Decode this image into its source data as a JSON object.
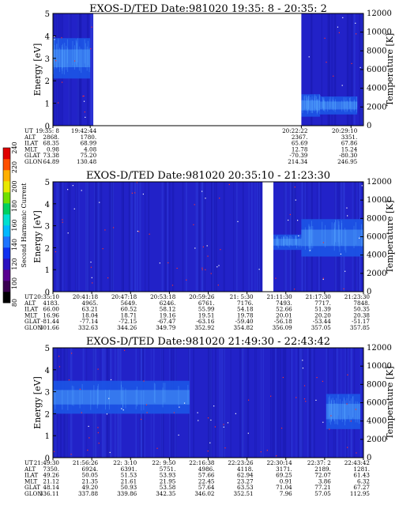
{
  "colors": {
    "background": "#2222c8",
    "band_core": "#3a7ff0",
    "band_edge": "#1c55e6",
    "dot": "#ff3030",
    "gap": "#ffffff",
    "colorbar": [
      "#000000",
      "#3a0050",
      "#5a0090",
      "#2a10c0",
      "#1030f0",
      "#1e74ff",
      "#00b8ff",
      "#00e0d0",
      "#00d060",
      "#70e000",
      "#e8e800",
      "#ffb000",
      "#ff5000",
      "#e00000"
    ]
  },
  "colorbar": {
    "label": "Second Harmonic Current",
    "ticks": [
      "80",
      "100",
      "120",
      "140",
      "160",
      "180",
      "200",
      "220",
      "240"
    ]
  },
  "chart_data": [
    {
      "type": "heatmap",
      "title": "EXOS-D/TED   Date:981020  19:35: 8 - 20:35: 2",
      "ylabel": "Energy [eV]",
      "y2label": "Temperature [K]",
      "ylim": [
        0,
        5
      ],
      "y2lim": [
        0,
        12000
      ],
      "yticks": [
        "0",
        "1",
        "2",
        "3",
        "4",
        "5"
      ],
      "y2ticks": [
        "0",
        "2000",
        "4000",
        "6000",
        "8000",
        "10000",
        "12000"
      ],
      "gaps": [
        [
          0.13,
          0.8
        ]
      ],
      "bands": [
        {
          "x0": 0.0,
          "x1": 0.12,
          "e0": 2.1,
          "e1": 3.9
        },
        {
          "x0": 0.8,
          "x1": 0.86,
          "e0": 0.4,
          "e1": 1.4
        },
        {
          "x0": 0.86,
          "x1": 0.98,
          "e0": 0.5,
          "e1": 1.3
        }
      ],
      "orbit": {
        "labels": [
          "UT",
          "ALT",
          "ILAT",
          "MLT",
          "GLAT",
          "GLON"
        ],
        "columns": [
          {
            "pos": 0.0,
            "vals": [
              "19:35: 8",
              "2868.",
              "68.35",
              "0.98",
              "73.38",
              "64.89"
            ]
          },
          {
            "pos": 0.12,
            "vals": [
              "19:42:44",
              "1780.",
              "68.99",
              "4.08",
              "75.20",
              "130.48"
            ]
          },
          {
            "pos": 0.8,
            "vals": [
              "20:22:22",
              "2367.",
              "65.69",
              "12.78",
              "-70.39",
              "214.34"
            ]
          },
          {
            "pos": 0.96,
            "vals": [
              "20:29:10",
              "3351.",
              "67.86",
              "15.24",
              "-80.30",
              "246.95"
            ]
          }
        ]
      }
    },
    {
      "type": "heatmap",
      "title": "EXOS-D/TED   Date:981020  20:35:10 - 21:23:30",
      "ylabel": "Energy [eV]",
      "y2label": "Temperature [K]",
      "ylim": [
        0,
        5
      ],
      "y2lim": [
        0,
        12000
      ],
      "yticks": [
        "0",
        "1",
        "2",
        "3",
        "4",
        "5"
      ],
      "y2ticks": [
        "0",
        "2000",
        "4000",
        "6000",
        "8000",
        "10000",
        "12000"
      ],
      "gaps": [
        [
          0.675,
          0.71
        ]
      ],
      "bands": [
        {
          "x0": 0.71,
          "x1": 0.8,
          "e0": 1.9,
          "e1": 2.6
        },
        {
          "x0": 0.8,
          "x1": 1.0,
          "e0": 1.6,
          "e1": 3.3
        }
      ],
      "orbit": {
        "labels": [
          "UT",
          "ALT",
          "ILAT",
          "MLT",
          "GLAT",
          "GLON"
        ],
        "columns": [
          {
            "pos": 0.0,
            "vals": [
              "20:35:10",
              "4183.",
              "66.00",
              "16.96",
              "-81.44",
              "301.66"
            ]
          },
          {
            "pos": 0.125,
            "vals": [
              "20:41:18",
              "4965.",
              "63.21",
              "18.04",
              "-77.14",
              "332.63"
            ]
          },
          {
            "pos": 0.25,
            "vals": [
              "20:47:18",
              "5649.",
              "60.52",
              "18.71",
              "-72.15",
              "344.26"
            ]
          },
          {
            "pos": 0.375,
            "vals": [
              "20:53:18",
              "6246.",
              "58.12",
              "19.16",
              "-67.47",
              "349.79"
            ]
          },
          {
            "pos": 0.5,
            "vals": [
              "20:59:26",
              "6761.",
              "55.99",
              "19.51",
              "-63.16",
              "352.92"
            ]
          },
          {
            "pos": 0.625,
            "vals": [
              "21: 5:30",
              "7176.",
              "54.18",
              "19.78",
              "-59.40",
              "354.82"
            ]
          },
          {
            "pos": 0.75,
            "vals": [
              "21:11:30",
              "7493.",
              "52.66",
              "20.01",
              "-56.18",
              "356.09"
            ]
          },
          {
            "pos": 0.875,
            "vals": [
              "21:17:30",
              "7717.",
              "51.39",
              "20.20",
              "-53.44",
              "357.05"
            ]
          },
          {
            "pos": 1.0,
            "vals": [
              "21:23:30",
              "7848.",
              "50.35",
              "20.38",
              "-51.17",
              "357.85"
            ]
          }
        ]
      }
    },
    {
      "type": "heatmap",
      "title": "EXOS-D/TED   Date:981020  21:49:30 - 22:43:42",
      "ylabel": "Energy [eV]",
      "y2label": "Temperature [K]",
      "ylim": [
        0,
        5
      ],
      "y2lim": [
        0,
        12000
      ],
      "yticks": [
        "0",
        "1",
        "2",
        "3",
        "4",
        "5"
      ],
      "y2ticks": [
        "0",
        "2000",
        "4000",
        "6000",
        "8000",
        "10000",
        "12000"
      ],
      "gaps": [],
      "bands": [
        {
          "x0": 0.0,
          "x1": 0.44,
          "e0": 2.0,
          "e1": 3.5
        },
        {
          "x0": 0.88,
          "x1": 0.99,
          "e0": 1.3,
          "e1": 2.9
        }
      ],
      "orbit": {
        "labels": [
          "UT",
          "ALT",
          "ILAT",
          "MLT",
          "GLAT",
          "GLON"
        ],
        "columns": [
          {
            "pos": 0.0,
            "vals": [
              "21:49:30",
              "7350.",
              "49.26",
              "21.12",
              "48.14",
              "336.11"
            ]
          },
          {
            "pos": 0.125,
            "vals": [
              "21:56:26",
              "6924.",
              "50.05",
              "21.35",
              "49.20",
              "337.88"
            ]
          },
          {
            "pos": 0.25,
            "vals": [
              "22: 3:10",
              "6391.",
              "51.53",
              "21.61",
              "50.93",
              "339.86"
            ]
          },
          {
            "pos": 0.375,
            "vals": [
              "22: 9:50",
              "5751.",
              "53.93",
              "21.95",
              "53.58",
              "342.35"
            ]
          },
          {
            "pos": 0.5,
            "vals": [
              "22:16:38",
              "4986.",
              "57.66",
              "22.45",
              "57.64",
              "346.02"
            ]
          },
          {
            "pos": 0.625,
            "vals": [
              "22:23:26",
              "4118.",
              "62.94",
              "23.27",
              "63.53",
              "352.51"
            ]
          },
          {
            "pos": 0.75,
            "vals": [
              "22:30:14",
              "3171.",
              "69.25",
              "0.91",
              "71.04",
              "7.96"
            ]
          },
          {
            "pos": 0.875,
            "vals": [
              "22:37: 2",
              "2189.",
              "72.07",
              "3.86",
              "77.21",
              "57.05"
            ]
          },
          {
            "pos": 1.0,
            "vals": [
              "22:43:42",
              "1281.",
              "61.43",
              "6.32",
              "67.27",
              "112.95"
            ]
          }
        ]
      }
    }
  ]
}
